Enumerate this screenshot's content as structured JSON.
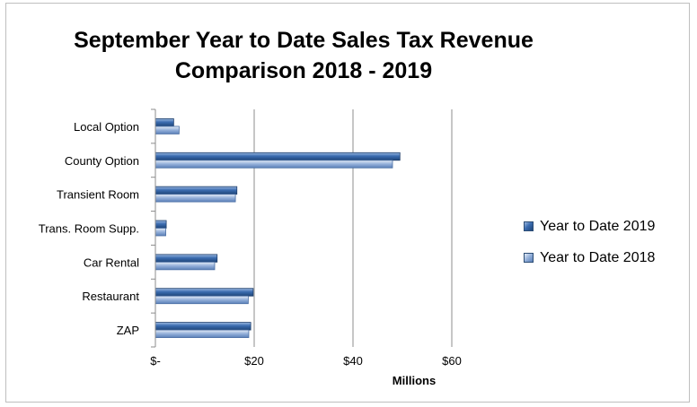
{
  "chart_data": {
    "type": "bar",
    "orientation": "horizontal",
    "title_line1": "September Year to Date Sales Tax Revenue",
    "title_line2": "Comparison 2018 - 2019",
    "xlabel": "Millions",
    "ylabel": "",
    "categories": [
      "Local Option",
      "County Option",
      "Transient Room",
      "Trans. Room Supp.",
      "Car Rental",
      "Restaurant",
      "ZAP"
    ],
    "series": [
      {
        "name": "Year to Date 2019",
        "color": "#2e5e9e",
        "values": [
          3.7,
          49.5,
          16.5,
          2.2,
          12.5,
          19.8,
          19.3
        ]
      },
      {
        "name": "Year to Date 2018",
        "color": "#8eaad6",
        "values": [
          4.8,
          48.0,
          16.2,
          2.1,
          12.0,
          18.8,
          18.9
        ]
      }
    ],
    "xlim": [
      0,
      60
    ],
    "xticks": [
      0,
      20,
      40,
      60
    ],
    "xtick_labels": [
      "$-",
      "$20",
      "$40",
      "$60"
    ],
    "grid": "vertical",
    "legend_position": "right"
  }
}
